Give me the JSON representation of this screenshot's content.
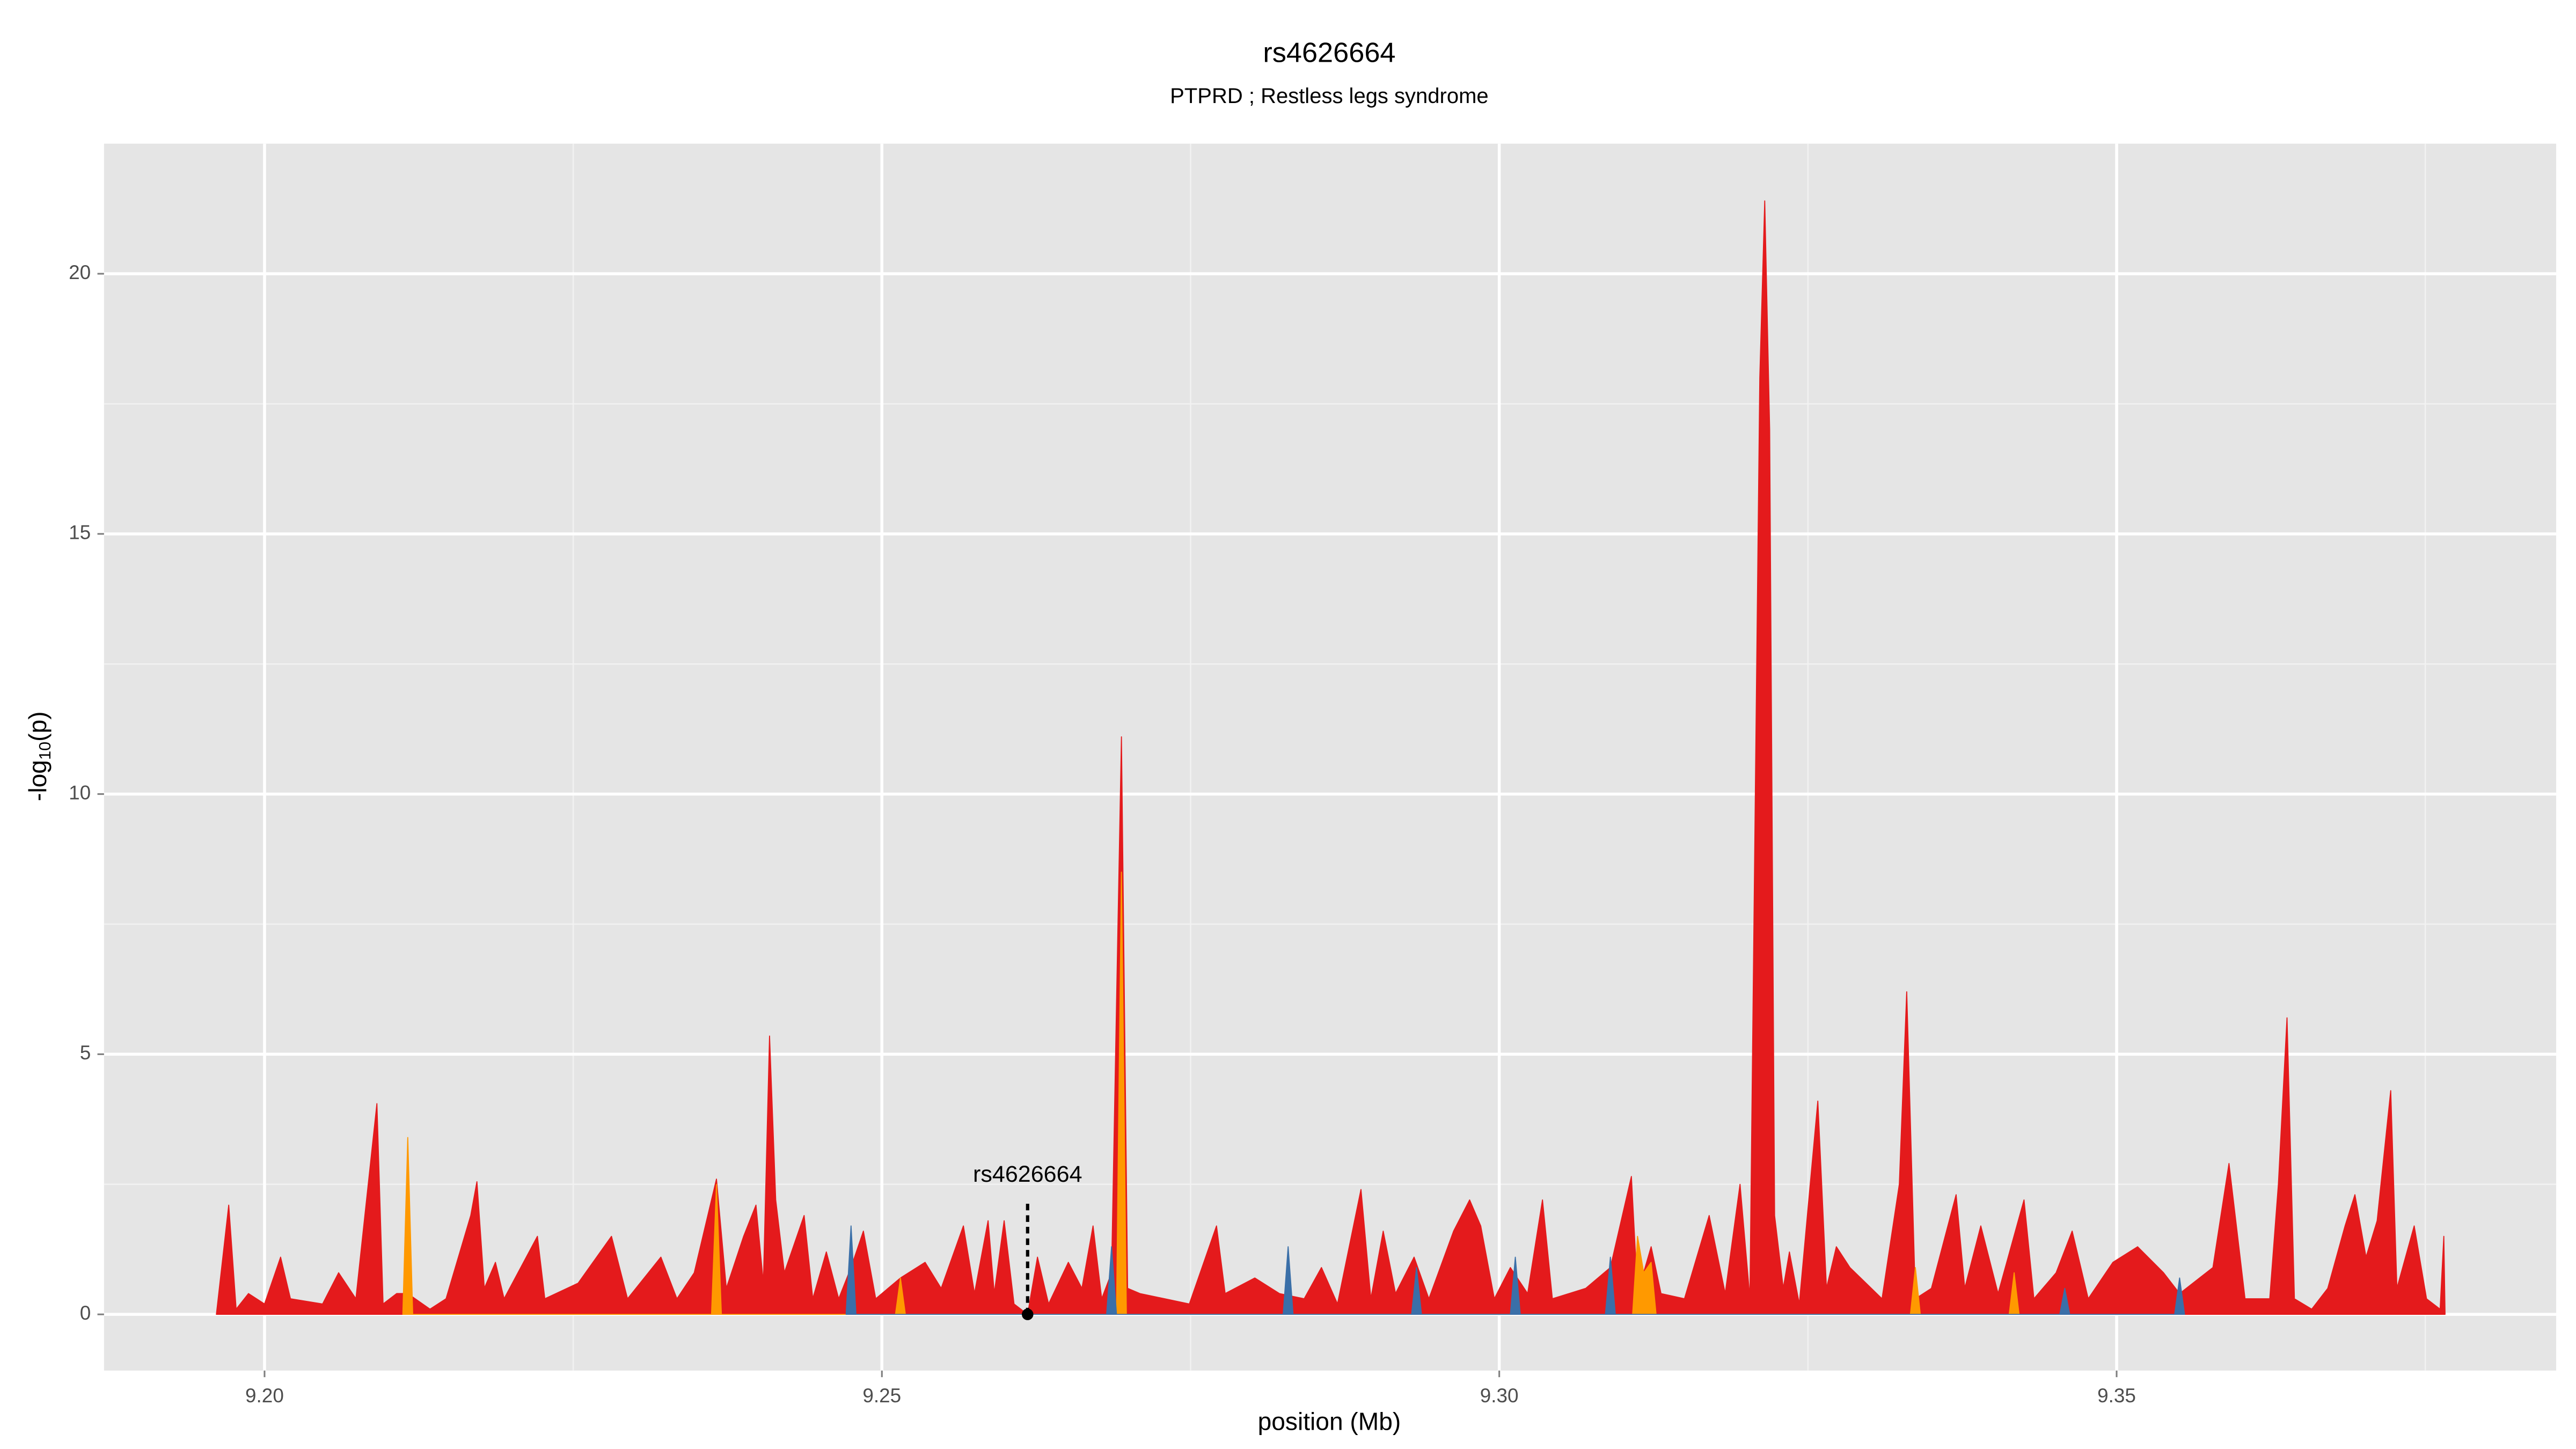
{
  "chart_data": {
    "type": "area",
    "title": "rs4626664",
    "subtitle": "PTPRD ; Restless legs syndrome",
    "xlabel": "position (Mb)",
    "ylabel": {
      "prefix": "-log",
      "sub": "10",
      "suffix": "(p)"
    },
    "xlim": [
      9.187,
      9.3856
    ],
    "ylim": [
      -1.08,
      22.5
    ],
    "xticks": [
      {
        "value": 9.2,
        "label": "9.20"
      },
      9.25,
      {
        "value": 9.3,
        "label": "9.30"
      },
      9.35
    ],
    "yticks": [
      0,
      5,
      10,
      15,
      20
    ],
    "xminorticks": [
      9.225,
      9.275,
      9.325,
      9.375
    ],
    "yminorticks": [
      2.5,
      7.5,
      12.5,
      17.5
    ],
    "grid": true,
    "annotation": {
      "text": "rs4626664",
      "x": 9.2618,
      "y": 0
    },
    "series": [
      {
        "color": "#e41a1c",
        "x": [
          9.1961,
          9.1971,
          9.1977,
          9.1987,
          9.2,
          9.2013,
          9.2021,
          9.2047,
          9.206,
          9.2074,
          9.2091,
          9.2096,
          9.2107,
          9.2116,
          9.2134,
          9.2147,
          9.2167,
          9.2172,
          9.2178,
          9.2187,
          9.2194,
          9.2221,
          9.2227,
          9.2254,
          9.2281,
          9.2294,
          9.2321,
          9.2334,
          9.2348,
          9.2366,
          9.2374,
          9.2388,
          9.2398,
          9.2404,
          9.2409,
          9.2414,
          9.2421,
          9.2437,
          9.2444,
          9.2455,
          9.2465,
          9.2475,
          9.2485,
          9.2495,
          9.2515,
          9.2535,
          9.2548,
          9.2566,
          9.2575,
          9.2586,
          9.2591,
          9.2599,
          9.2607,
          9.2618,
          9.2626,
          9.2635,
          9.2651,
          9.2662,
          9.2671,
          9.2678,
          9.2686,
          9.2694,
          9.2699,
          9.2709,
          9.2729,
          9.2749,
          9.2771,
          9.2778,
          9.2802,
          9.2822,
          9.2842,
          9.2856,
          9.2869,
          9.2888,
          9.2896,
          9.2906,
          9.2916,
          9.2931,
          9.2943,
          9.2963,
          9.2976,
          9.2985,
          9.2996,
          9.3009,
          9.3023,
          9.3035,
          9.3043,
          9.307,
          9.309,
          9.3107,
          9.3112,
          9.3123,
          9.3131,
          9.315,
          9.317,
          9.3183,
          9.3195,
          9.3203,
          9.3211,
          9.3215,
          9.3219,
          9.3223,
          9.323,
          9.3235,
          9.3243,
          9.3258,
          9.3265,
          9.3273,
          9.3284,
          9.3297,
          9.331,
          9.3324,
          9.333,
          9.3337,
          9.335,
          9.337,
          9.3377,
          9.339,
          9.3404,
          9.3425,
          9.3433,
          9.3451,
          9.3464,
          9.3477,
          9.3497,
          9.3517,
          9.3538,
          9.3551,
          9.3578,
          9.3591,
          9.3604,
          9.3624,
          9.3631,
          9.3638,
          9.3644,
          9.3658,
          9.3671,
          9.3685,
          9.3693,
          9.3702,
          9.3711,
          9.3722,
          9.3727,
          9.3741,
          9.3751,
          9.3762,
          9.3765,
          9.3766
        ],
        "values": [
          0,
          2.1,
          0.1,
          0.4,
          0.2,
          1.1,
          0.3,
          0.2,
          0.8,
          0.3,
          4.05,
          0.2,
          0.4,
          0.4,
          0.1,
          0.3,
          1.9,
          2.55,
          0.5,
          1.0,
          0.3,
          1.5,
          0.3,
          0.6,
          1.5,
          0.3,
          1.1,
          0.3,
          0.8,
          2.6,
          0.5,
          1.5,
          2.1,
          0.6,
          5.35,
          2.2,
          0.8,
          1.9,
          0.3,
          1.2,
          0.3,
          0.9,
          1.6,
          0.3,
          0.7,
          1.0,
          0.5,
          1.7,
          0.4,
          1.8,
          0.4,
          1.8,
          0.2,
          0,
          1.1,
          0.2,
          1.0,
          0.5,
          1.7,
          0.3,
          0.8,
          11.1,
          0.5,
          0.4,
          0.3,
          0.2,
          1.7,
          0.4,
          0.7,
          0.4,
          0.3,
          0.9,
          0.2,
          2.4,
          0.3,
          1.6,
          0.4,
          1.1,
          0.3,
          1.6,
          2.2,
          1.7,
          0.3,
          0.9,
          0.4,
          2.2,
          0.3,
          0.5,
          0.9,
          2.65,
          0.4,
          1.3,
          0.4,
          0.3,
          1.9,
          0.4,
          2.5,
          0.3,
          18,
          21.4,
          17,
          1.9,
          0.5,
          1.2,
          0.2,
          4.1,
          0.5,
          1.3,
          0.9,
          0.6,
          0.3,
          2.5,
          6.2,
          0.3,
          0.5,
          2.3,
          0.5,
          1.7,
          0.4,
          2.2,
          0.3,
          0.8,
          1.6,
          0.3,
          1.0,
          1.3,
          0.8,
          0.4,
          0.9,
          2.9,
          0.3,
          0.3,
          2.5,
          5.7,
          0.3,
          0.1,
          0.5,
          1.7,
          2.3,
          1.1,
          1.8,
          4.3,
          0.5,
          1.7,
          0.3,
          0.1,
          1.5,
          0
        ]
      },
      {
        "color": "#ff9900",
        "x": [
          9.2112,
          9.2116,
          9.212,
          9.2362,
          9.2366,
          9.237,
          9.2511,
          9.2515,
          9.2519,
          9.269,
          9.2694,
          9.2698,
          9.3108,
          9.3112,
          9.3117,
          9.3123,
          9.3127,
          9.3333,
          9.3337,
          9.3341,
          9.3413,
          9.3417,
          9.3421
        ],
        "values": [
          0,
          3.4,
          0,
          0,
          2.5,
          0,
          0,
          0.7,
          0,
          0,
          8.5,
          0,
          0,
          1.5,
          0.8,
          1.0,
          0,
          0,
          0.9,
          0,
          0,
          0.8,
          0
        ]
      },
      {
        "color": "#3a6fa8",
        "x": [
          9.2471,
          9.2475,
          9.2479,
          9.2682,
          9.2686,
          9.269,
          9.2825,
          9.2829,
          9.2833,
          9.2929,
          9.2933,
          9.2937,
          9.3009,
          9.3013,
          9.3017,
          9.3086,
          9.309,
          9.3094,
          9.3454,
          9.3458,
          9.3462,
          9.3547,
          9.3551,
          9.3555
        ],
        "values": [
          0,
          1.7,
          0,
          0,
          1.3,
          0,
          0,
          1.3,
          0,
          0,
          0.9,
          0,
          0,
          1.1,
          0,
          0,
          1.1,
          0,
          0,
          0.5,
          0,
          0,
          0.7,
          0
        ]
      }
    ]
  }
}
